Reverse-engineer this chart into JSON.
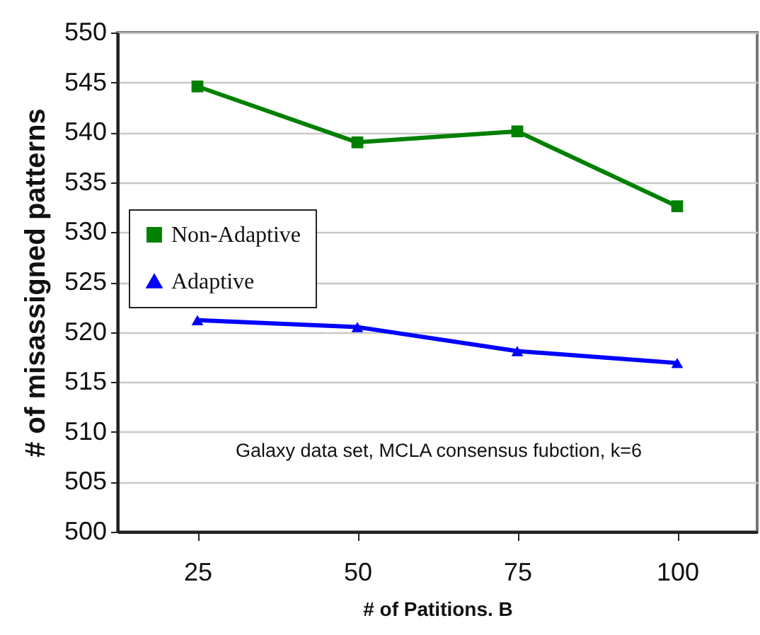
{
  "chart_data": {
    "type": "line",
    "xlabel": "# of Patitions. B",
    "ylabel": "# of misassigned patterns",
    "categories": [
      "25",
      "50",
      "75",
      "100"
    ],
    "ylim": [
      500,
      550
    ],
    "yticks": [
      500,
      505,
      510,
      515,
      520,
      525,
      530,
      535,
      540,
      545,
      550
    ],
    "grid": "y",
    "legend": "left",
    "line_style": "solid",
    "annotations": [
      "Galaxy data set, MCLA consensus fubction, k=6"
    ],
    "series": [
      {
        "name": "Non-Adaptive",
        "color": "#008000",
        "marker": "square",
        "values": [
          544.6,
          539.0,
          540.1,
          532.6
        ]
      },
      {
        "name": "Adaptive",
        "color": "#0000ff",
        "marker": "triangle",
        "values": [
          521.2,
          520.5,
          518.1,
          516.9
        ]
      }
    ]
  }
}
